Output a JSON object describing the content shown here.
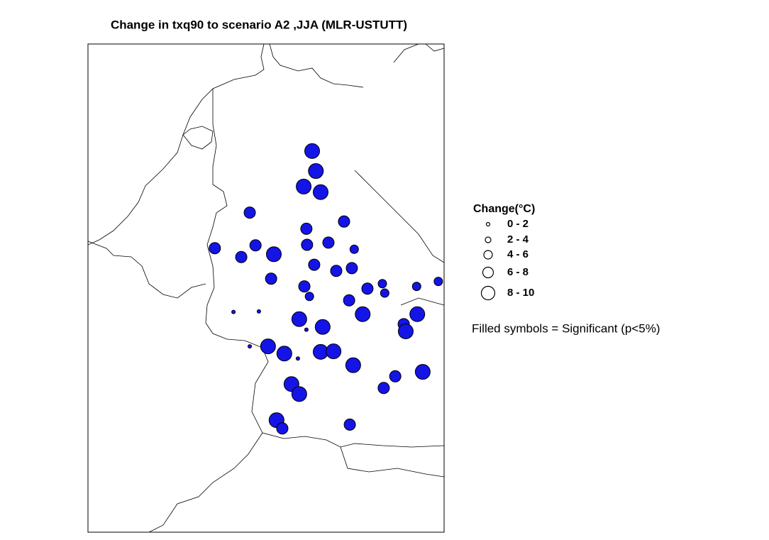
{
  "title": "Change in txq90 to scenario A2 ,JJA (MLR-USTUTT)",
  "note": "Filled symbols = Significant (p<5%)",
  "legend": {
    "title": "Change(°C)",
    "classes": [
      {
        "label": "0 - 2",
        "min": 0,
        "max": 2
      },
      {
        "label": "2 - 4",
        "min": 2,
        "max": 4
      },
      {
        "label": "4 - 6",
        "min": 4,
        "max": 6
      },
      {
        "label": "6 - 8",
        "min": 6,
        "max": 8
      },
      {
        "label": "8 - 10",
        "min": 8,
        "max": 10
      }
    ]
  },
  "color": "#1414e6",
  "lonlim": [
    2.5,
    13.0
  ],
  "latlim": [
    46.8,
    55.6
  ],
  "stations": [
    {
      "lon": 9.11,
      "lat": 53.67,
      "change": 9
    },
    {
      "lon": 9.22,
      "lat": 53.31,
      "change": 9
    },
    {
      "lon": 8.86,
      "lat": 53.03,
      "change": 9
    },
    {
      "lon": 9.36,
      "lat": 52.93,
      "change": 9
    },
    {
      "lon": 7.27,
      "lat": 52.56,
      "change": 7
    },
    {
      "lon": 10.05,
      "lat": 52.4,
      "change": 7
    },
    {
      "lon": 8.94,
      "lat": 52.27,
      "change": 7
    },
    {
      "lon": 6.24,
      "lat": 51.92,
      "change": 7
    },
    {
      "lon": 7.02,
      "lat": 51.76,
      "change": 7
    },
    {
      "lon": 7.44,
      "lat": 51.97,
      "change": 7
    },
    {
      "lon": 7.98,
      "lat": 51.81,
      "change": 9
    },
    {
      "lon": 8.96,
      "lat": 51.98,
      "change": 7
    },
    {
      "lon": 9.59,
      "lat": 52.02,
      "change": 7
    },
    {
      "lon": 10.35,
      "lat": 51.9,
      "change": 5
    },
    {
      "lon": 9.17,
      "lat": 51.62,
      "change": 7
    },
    {
      "lon": 9.82,
      "lat": 51.51,
      "change": 7
    },
    {
      "lon": 10.28,
      "lat": 51.56,
      "change": 7
    },
    {
      "lon": 7.9,
      "lat": 51.37,
      "change": 7
    },
    {
      "lon": 8.88,
      "lat": 51.23,
      "change": 7
    },
    {
      "lon": 9.03,
      "lat": 51.05,
      "change": 5
    },
    {
      "lon": 10.74,
      "lat": 51.19,
      "change": 7
    },
    {
      "lon": 11.18,
      "lat": 51.28,
      "change": 5
    },
    {
      "lon": 11.25,
      "lat": 51.11,
      "change": 5
    },
    {
      "lon": 12.19,
      "lat": 51.23,
      "change": 5
    },
    {
      "lon": 12.83,
      "lat": 51.32,
      "change": 5
    },
    {
      "lon": 10.2,
      "lat": 50.98,
      "change": 7
    },
    {
      "lon": 10.6,
      "lat": 50.73,
      "change": 9
    },
    {
      "lon": 12.21,
      "lat": 50.73,
      "change": 9
    },
    {
      "lon": 11.81,
      "lat": 50.55,
      "change": 7
    },
    {
      "lon": 11.87,
      "lat": 50.42,
      "change": 9
    },
    {
      "lon": 8.73,
      "lat": 50.64,
      "change": 9
    },
    {
      "lon": 9.42,
      "lat": 50.5,
      "change": 9
    },
    {
      "lon": 6.79,
      "lat": 50.77,
      "change": 1
    },
    {
      "lon": 7.54,
      "lat": 50.78,
      "change": 1
    },
    {
      "lon": 8.94,
      "lat": 50.45,
      "change": 1
    },
    {
      "lon": 7.27,
      "lat": 50.15,
      "change": 1
    },
    {
      "lon": 8.69,
      "lat": 49.93,
      "change": 1
    },
    {
      "lon": 7.81,
      "lat": 50.15,
      "change": 9
    },
    {
      "lon": 8.29,
      "lat": 50.02,
      "change": 9
    },
    {
      "lon": 9.36,
      "lat": 50.05,
      "change": 9
    },
    {
      "lon": 9.74,
      "lat": 50.06,
      "change": 9
    },
    {
      "lon": 10.32,
      "lat": 49.81,
      "change": 9
    },
    {
      "lon": 12.37,
      "lat": 49.69,
      "change": 9
    },
    {
      "lon": 11.56,
      "lat": 49.61,
      "change": 7
    },
    {
      "lon": 11.22,
      "lat": 49.4,
      "change": 7
    },
    {
      "lon": 8.5,
      "lat": 49.47,
      "change": 9
    },
    {
      "lon": 8.73,
      "lat": 49.29,
      "change": 9
    },
    {
      "lon": 8.06,
      "lat": 48.82,
      "change": 9
    },
    {
      "lon": 8.23,
      "lat": 48.67,
      "change": 7
    },
    {
      "lon": 10.22,
      "lat": 48.74,
      "change": 7
    }
  ]
}
